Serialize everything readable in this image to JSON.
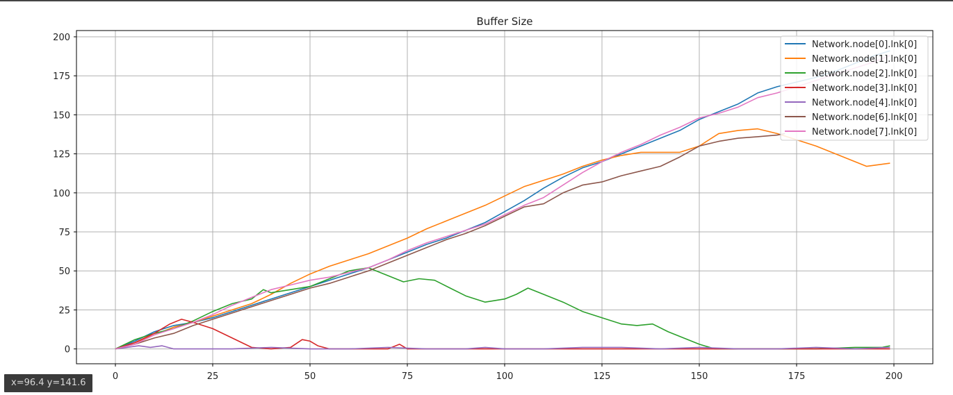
{
  "status": {
    "coord_readout": "x=96.4 y=141.6"
  },
  "chart_data": {
    "type": "line",
    "title": "Buffer Size",
    "xlabel": "",
    "ylabel": "",
    "xlim": [
      -10,
      210
    ],
    "ylim": [
      -9.5,
      204
    ],
    "xticks": [
      0,
      25,
      50,
      75,
      100,
      125,
      150,
      175,
      200
    ],
    "yticks": [
      0,
      25,
      50,
      75,
      100,
      125,
      150,
      175,
      200
    ],
    "grid": true,
    "legend_position": "top-right",
    "series": [
      {
        "name": "Network.node[0].lnk[0]",
        "color": "#1f77b4",
        "x": [
          0,
          5,
          10,
          15,
          20,
          25,
          30,
          35,
          40,
          45,
          50,
          55,
          60,
          65,
          70,
          75,
          80,
          85,
          90,
          95,
          100,
          105,
          110,
          115,
          120,
          125,
          130,
          135,
          140,
          145,
          150,
          155,
          160,
          165,
          170,
          175,
          180,
          185,
          190,
          195,
          199
        ],
        "y": [
          0,
          5,
          11,
          15,
          17,
          20,
          24,
          28,
          32,
          36,
          40,
          44,
          48,
          52,
          57,
          62,
          67,
          71,
          76,
          81,
          88,
          95,
          103,
          110,
          116,
          120,
          125,
          130,
          135,
          140,
          147,
          152,
          157,
          164,
          168,
          171,
          174,
          178,
          183,
          188,
          191
        ]
      },
      {
        "name": "Network.node[1].lnk[0]",
        "color": "#ff7f0e",
        "x": [
          0,
          5,
          10,
          15,
          20,
          25,
          30,
          35,
          40,
          45,
          50,
          55,
          60,
          65,
          70,
          75,
          80,
          85,
          90,
          95,
          100,
          105,
          110,
          115,
          120,
          125,
          130,
          135,
          140,
          145,
          150,
          155,
          160,
          165,
          170,
          175,
          180,
          185,
          190,
          193,
          196,
          199
        ],
        "y": [
          0,
          4,
          9,
          14,
          17,
          21,
          25,
          29,
          35,
          42,
          48,
          53,
          57,
          61,
          66,
          71,
          77,
          82,
          87,
          92,
          98,
          104,
          108,
          112,
          117,
          121,
          124,
          126,
          126,
          126,
          130,
          138,
          140,
          141,
          138,
          134,
          130,
          125,
          120,
          117,
          118,
          119
        ]
      },
      {
        "name": "Network.node[2].lnk[0]",
        "color": "#2ca02c",
        "x": [
          0,
          5,
          10,
          15,
          20,
          25,
          30,
          35,
          38,
          40,
          45,
          50,
          55,
          60,
          65,
          70,
          74,
          78,
          82,
          86,
          90,
          95,
          100,
          103,
          106,
          110,
          115,
          120,
          125,
          130,
          134,
          138,
          142,
          146,
          150,
          154,
          160,
          170,
          180,
          190,
          197,
          199
        ],
        "y": [
          0,
          6,
          10,
          13,
          18,
          24,
          29,
          32,
          38,
          36,
          38,
          40,
          45,
          50,
          52,
          47,
          43,
          45,
          44,
          39,
          34,
          30,
          32,
          35,
          39,
          35,
          30,
          24,
          20,
          16,
          15,
          16,
          11,
          7,
          3,
          0,
          0,
          0,
          0,
          1,
          1,
          2
        ]
      },
      {
        "name": "Network.node[3].lnk[0]",
        "color": "#d62728",
        "x": [
          0,
          5,
          10,
          14,
          17,
          20,
          25,
          30,
          35,
          40,
          45,
          48,
          50,
          52,
          55,
          60,
          70,
          73,
          75,
          80,
          100,
          125,
          150,
          175,
          199
        ],
        "y": [
          0,
          4,
          10,
          16,
          19,
          17,
          13,
          7,
          1,
          0,
          1,
          6,
          5,
          2,
          0,
          0,
          0,
          3,
          0,
          0,
          0,
          0,
          0,
          0,
          0
        ]
      },
      {
        "name": "Network.node[4].lnk[0]",
        "color": "#9467bd",
        "x": [
          0,
          3,
          6,
          9,
          12,
          15,
          20,
          30,
          40,
          50,
          60,
          70,
          80,
          90,
          95,
          100,
          110,
          120,
          130,
          140,
          150,
          160,
          170,
          180,
          190,
          199
        ],
        "y": [
          0,
          1,
          2,
          1,
          2,
          0,
          0,
          0,
          1,
          0,
          0,
          1,
          0,
          0,
          1,
          0,
          0,
          1,
          1,
          0,
          1,
          0,
          0,
          1,
          0,
          1
        ]
      },
      {
        "name": "Network.node[6].lnk[0]",
        "color": "#8c564b",
        "x": [
          0,
          5,
          10,
          15,
          20,
          25,
          30,
          35,
          40,
          45,
          50,
          55,
          60,
          65,
          70,
          75,
          80,
          85,
          90,
          95,
          100,
          105,
          110,
          115,
          120,
          125,
          130,
          135,
          140,
          145,
          150,
          155,
          160,
          165,
          170,
          172
        ],
        "y": [
          0,
          3,
          7,
          10,
          15,
          19,
          23,
          27,
          31,
          35,
          39,
          42,
          46,
          50,
          55,
          60,
          65,
          70,
          74,
          79,
          85,
          91,
          93,
          100,
          105,
          107,
          111,
          114,
          117,
          123,
          130,
          133,
          135,
          136,
          137,
          138
        ]
      },
      {
        "name": "Network.node[7].lnk[0]",
        "color": "#e377c2",
        "x": [
          0,
          5,
          10,
          15,
          20,
          25,
          30,
          35,
          40,
          45,
          50,
          55,
          60,
          65,
          70,
          75,
          80,
          85,
          90,
          95,
          100,
          105,
          110,
          115,
          120,
          125,
          130,
          135,
          140,
          145,
          150,
          155,
          160,
          165,
          170,
          175,
          180,
          185,
          190,
          195,
          199
        ],
        "y": [
          0,
          3,
          9,
          13,
          17,
          22,
          28,
          33,
          38,
          41,
          44,
          46,
          49,
          52,
          57,
          63,
          68,
          72,
          76,
          80,
          86,
          92,
          97,
          105,
          113,
          120,
          126,
          131,
          137,
          142,
          148,
          151,
          155,
          161,
          164,
          168,
          172,
          176,
          180,
          184,
          188
        ]
      }
    ]
  }
}
